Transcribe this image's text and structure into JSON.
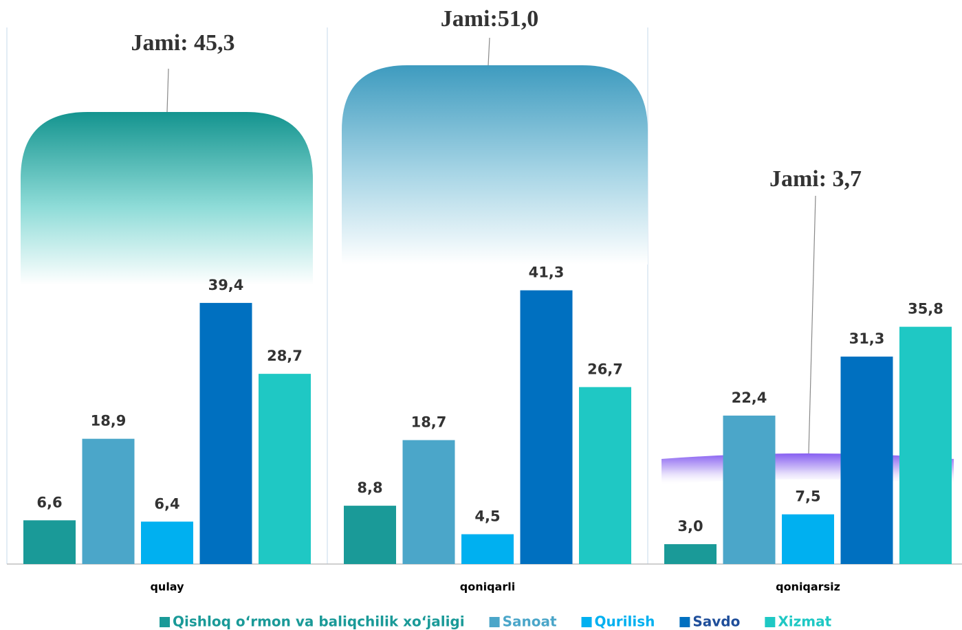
{
  "chart_data": {
    "type": "bar",
    "categories": [
      "qulay",
      "qoniqarli",
      "qoniqarsiz"
    ],
    "annotations": [
      "Jami: 45,3",
      "Jami:51,0",
      "Jami: 3,7"
    ],
    "ylim": [
      0,
      85
    ],
    "series": [
      {
        "name": "Qishloq o‘rmon va baliqchilik xo‘jaligi",
        "color": "#1a9a98",
        "values": [
          6.6,
          8.8,
          3.0
        ],
        "value_labels": [
          "6,6",
          "8,8",
          "3,0"
        ]
      },
      {
        "name": "Sanoat",
        "color": "#4ba6c9",
        "values": [
          18.9,
          18.7,
          22.4
        ],
        "value_labels": [
          "18,9",
          "18,7",
          "22,4"
        ]
      },
      {
        "name": "Qurilish",
        "color": "#00b0f0",
        "values": [
          6.4,
          4.5,
          7.5
        ],
        "value_labels": [
          "6,4",
          "4,5",
          "7,5"
        ]
      },
      {
        "name": "Savdo",
        "color": "#0070c0",
        "values": [
          39.4,
          41.3,
          31.3
        ],
        "value_labels": [
          "39,4",
          "41,3",
          "31,3"
        ]
      },
      {
        "name": "Xizmat",
        "color": "#1fc8c4",
        "values": [
          28.7,
          26.7,
          35.8
        ],
        "value_labels": [
          "28,7",
          "26,7",
          "35,8"
        ]
      }
    ]
  }
}
